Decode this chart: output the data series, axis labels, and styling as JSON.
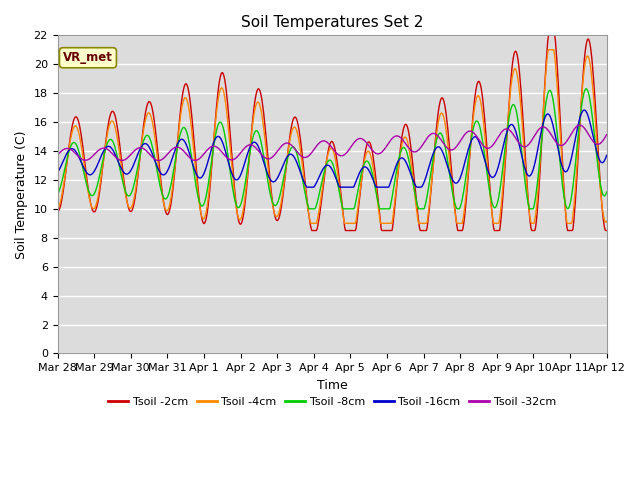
{
  "title": "Soil Temperatures Set 2",
  "xlabel": "Time",
  "ylabel": "Soil Temperature (C)",
  "ylim": [
    0,
    22
  ],
  "yticks": [
    0,
    2,
    4,
    6,
    8,
    10,
    12,
    14,
    16,
    18,
    20,
    22
  ],
  "plot_bg_color": "#dcdcdc",
  "fig_bg_color": "#ffffff",
  "series_colors": [
    "#cc0000",
    "#ff8800",
    "#00cc00",
    "#0000cc",
    "#aa00aa"
  ],
  "series_labels": [
    "Tsoil -2cm",
    "Tsoil -4cm",
    "Tsoil -8cm",
    "Tsoil -16cm",
    "Tsoil -32cm"
  ],
  "annotation_text": "VR_met",
  "x_tick_labels": [
    "Mar 28",
    "Mar 29",
    "Mar 30",
    "Mar 31",
    "Apr 1",
    "Apr 2",
    "Apr 3",
    "Apr 4",
    "Apr 5",
    "Apr 6",
    "Apr 7",
    "Apr 8",
    "Apr 9",
    "Apr 10",
    "Apr 11",
    "Apr 12"
  ],
  "n_days": 15,
  "title_fontsize": 11,
  "axis_fontsize": 9,
  "tick_fontsize": 8
}
